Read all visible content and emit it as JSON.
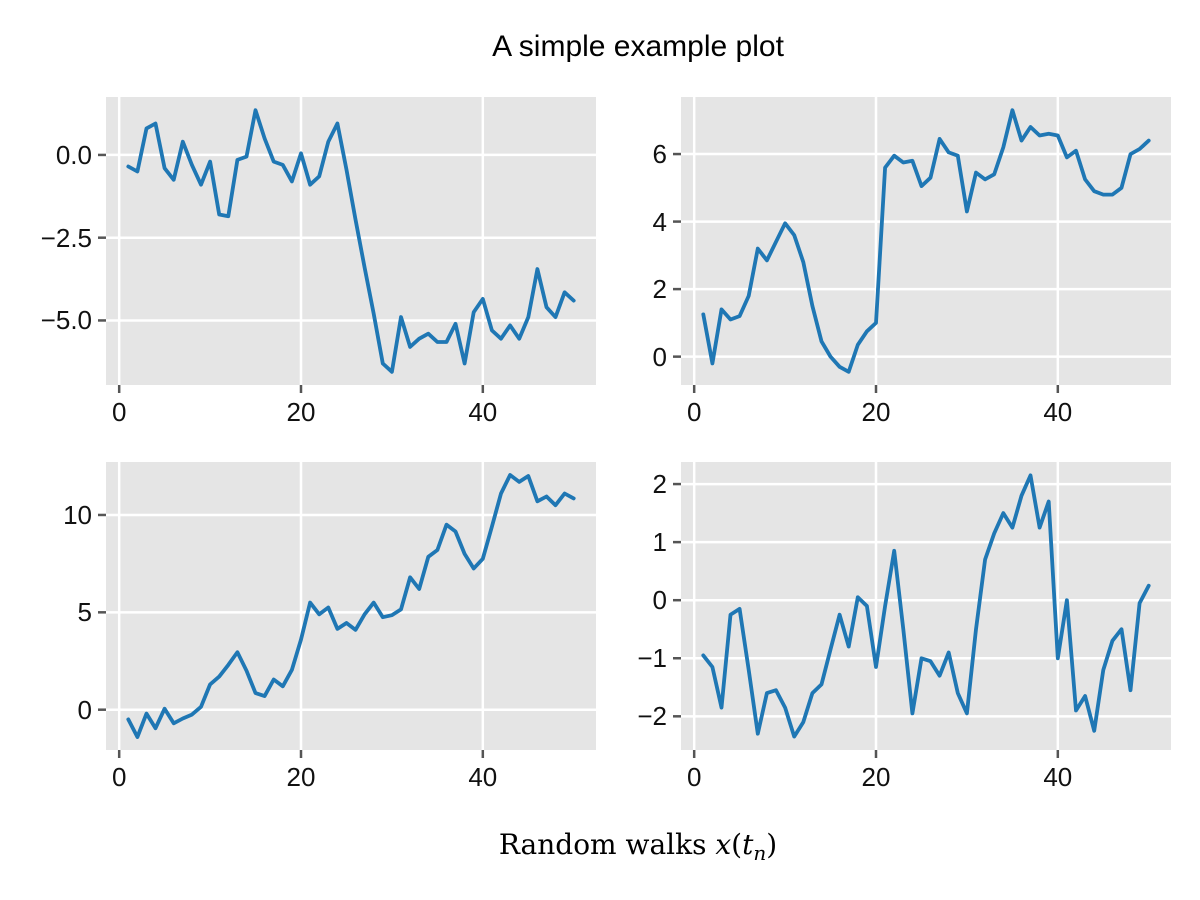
{
  "title": "A simple example plot",
  "xlabel": {
    "prefix": "Random walks ",
    "var_x": "x",
    "paren_open": "(",
    "var_t": "t",
    "subscript": "n",
    "paren_close": ")",
    "full_text": "Random walks x(t_n)"
  },
  "colors": {
    "line": "#1f77b4",
    "panel_bg": "#e5e5e5",
    "grid": "#ffffff",
    "tick_mark": "#555555",
    "text": "#111111"
  },
  "chart_data": [
    {
      "name": "top-left",
      "type": "line",
      "x_start": 1,
      "x_step": 1,
      "n_points": 50,
      "values": [
        -0.35,
        -0.5,
        0.8,
        0.95,
        -0.4,
        -0.75,
        0.4,
        -0.3,
        -0.9,
        -0.2,
        -1.8,
        -1.85,
        -0.15,
        -0.05,
        1.35,
        0.5,
        -0.2,
        -0.3,
        -0.8,
        0.05,
        -0.9,
        -0.65,
        0.4,
        0.95,
        -0.45,
        -1.95,
        -3.4,
        -4.8,
        -6.3,
        -6.55,
        -4.9,
        -5.8,
        -5.55,
        -5.4,
        -5.65,
        -5.65,
        -5.1,
        -6.3,
        -4.75,
        -4.35,
        -5.3,
        -5.55,
        -5.15,
        -5.55,
        -4.9,
        -3.45,
        -4.6,
        -4.9,
        -4.15,
        -4.4
      ],
      "xlim": [
        -1.45,
        52.45
      ],
      "ylim": [
        -6.95,
        1.75
      ],
      "xticks": [
        0,
        20,
        40
      ],
      "xtick_labels": [
        "0",
        "20",
        "40"
      ],
      "yticks": [
        0,
        -2.5,
        -5
      ],
      "ytick_labels": [
        "0.0",
        "−2.5",
        "−5.0"
      ],
      "grid": true,
      "legend": "none"
    },
    {
      "name": "top-right",
      "type": "line",
      "x_start": 1,
      "x_step": 1,
      "n_points": 50,
      "values": [
        1.25,
        -0.2,
        1.4,
        1.1,
        1.2,
        1.8,
        3.2,
        2.85,
        3.4,
        3.95,
        3.6,
        2.8,
        1.5,
        0.45,
        0.0,
        -0.3,
        -0.45,
        0.35,
        0.75,
        1.0,
        5.6,
        5.95,
        5.75,
        5.8,
        5.05,
        5.3,
        6.45,
        6.05,
        5.95,
        4.3,
        5.45,
        5.25,
        5.4,
        6.2,
        7.3,
        6.4,
        6.8,
        6.55,
        6.6,
        6.55,
        5.9,
        6.1,
        5.25,
        4.9,
        4.8,
        4.8,
        5.0,
        6.0,
        6.15,
        6.4
      ],
      "xlim": [
        -1.45,
        52.45
      ],
      "ylim": [
        -0.84,
        7.69
      ],
      "xticks": [
        0,
        20,
        40
      ],
      "xtick_labels": [
        "0",
        "20",
        "40"
      ],
      "yticks": [
        0,
        2,
        4,
        6
      ],
      "ytick_labels": [
        "0",
        "2",
        "4",
        "6"
      ],
      "grid": true,
      "legend": "none"
    },
    {
      "name": "bottom-left",
      "type": "line",
      "x_start": 1,
      "x_step": 1,
      "n_points": 50,
      "values": [
        -0.5,
        -1.4,
        -0.2,
        -0.95,
        0.05,
        -0.7,
        -0.45,
        -0.25,
        0.15,
        1.3,
        1.7,
        2.3,
        2.95,
        2.0,
        0.85,
        0.7,
        1.55,
        1.2,
        2.05,
        3.6,
        5.5,
        4.9,
        5.25,
        4.15,
        4.45,
        4.1,
        4.9,
        5.5,
        4.75,
        4.85,
        5.15,
        6.8,
        6.2,
        7.85,
        8.2,
        9.5,
        9.15,
        8.0,
        7.25,
        7.75,
        9.4,
        11.1,
        12.05,
        11.7,
        12.0,
        10.7,
        10.95,
        10.5,
        11.1,
        10.85
      ],
      "xlim": [
        -1.45,
        52.45
      ],
      "ylim": [
        -2.07,
        12.72
      ],
      "xticks": [
        0,
        20,
        40
      ],
      "xtick_labels": [
        "0",
        "20",
        "40"
      ],
      "yticks": [
        0,
        5,
        10
      ],
      "ytick_labels": [
        "0",
        "5",
        "10"
      ],
      "grid": true,
      "legend": "none"
    },
    {
      "name": "bottom-right",
      "type": "line",
      "x_start": 1,
      "x_step": 1,
      "n_points": 50,
      "values": [
        -0.95,
        -1.15,
        -1.85,
        -0.25,
        -0.15,
        -1.2,
        -2.3,
        -1.6,
        -1.55,
        -1.85,
        -2.35,
        -2.1,
        -1.6,
        -1.45,
        -0.85,
        -0.25,
        -0.8,
        0.05,
        -0.1,
        -1.15,
        -0.1,
        0.85,
        -0.5,
        -1.95,
        -1.0,
        -1.05,
        -1.3,
        -0.9,
        -1.6,
        -1.95,
        -0.5,
        0.7,
        1.15,
        1.5,
        1.25,
        1.8,
        2.15,
        1.25,
        1.7,
        -1.0,
        0.0,
        -1.9,
        -1.65,
        -2.25,
        -1.2,
        -0.7,
        -0.5,
        -1.55,
        -0.05,
        0.25
      ],
      "xlim": [
        -1.45,
        52.45
      ],
      "ylim": [
        -2.58,
        2.38
      ],
      "xticks": [
        0,
        20,
        40
      ],
      "xtick_labels": [
        "0",
        "20",
        "40"
      ],
      "yticks": [
        -2,
        -1,
        0,
        1,
        2
      ],
      "ytick_labels": [
        "−2",
        "−1",
        "0",
        "1",
        "2"
      ],
      "grid": true,
      "legend": "none"
    }
  ]
}
